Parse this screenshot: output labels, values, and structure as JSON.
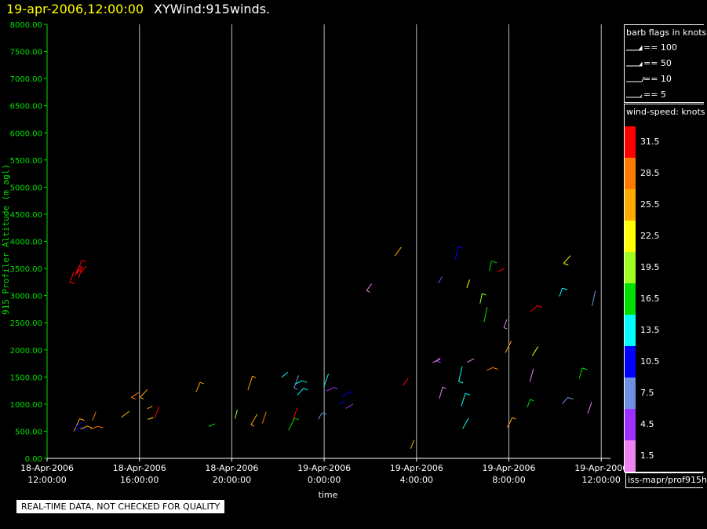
{
  "header": {
    "datetime": "19-apr-2006,12:00:00",
    "title": "XYWind:915winds."
  },
  "notice": "REAL-TIME DATA, NOT CHECKED FOR QUALITY",
  "source_label": "iss-mapr/prof915h",
  "barb_legend": {
    "title": "barb flags in knots",
    "items": [
      "== 100",
      "== 50",
      "== 10",
      "== 5"
    ]
  },
  "speed_legend": {
    "title": "wind-speed: knots",
    "levels": [
      {
        "label": "31.5",
        "color": "#ff0000"
      },
      {
        "label": "28.5",
        "color": "#ff7a00"
      },
      {
        "label": "25.5",
        "color": "#ffaa00"
      },
      {
        "label": "22.5",
        "color": "#ffff00"
      },
      {
        "label": "19.5",
        "color": "#a0ff20"
      },
      {
        "label": "16.5",
        "color": "#00e000"
      },
      {
        "label": "13.5",
        "color": "#00ffff"
      },
      {
        "label": "10.5",
        "color": "#0000ff"
      },
      {
        "label": "7.5",
        "color": "#6f8fe0"
      },
      {
        "label": "4.5",
        "color": "#9b30ff"
      },
      {
        "label": "1.5",
        "color": "#ee82ee"
      }
    ]
  },
  "chart_data": {
    "type": "scatter",
    "ylabel": "915 Profiler Altitude (m agl)",
    "xlabel": "time",
    "ylim": [
      0,
      8000
    ],
    "y_ticks": [
      "0.00",
      "500.00",
      "1000.00",
      "1500.00",
      "2000.00",
      "2500.00",
      "3000.00",
      "3500.00",
      "4000.00",
      "4500.00",
      "5000.00",
      "5500.00",
      "6000.00",
      "6500.00",
      "7000.00",
      "7500.00",
      "8000.00"
    ],
    "xlim_hours": [
      0,
      24.4
    ],
    "x_ticks": [
      {
        "hour": 0,
        "date": "18-Apr-2006",
        "time": "12:00:00"
      },
      {
        "hour": 4,
        "date": "18-Apr-2006",
        "time": "16:00:00"
      },
      {
        "hour": 8,
        "date": "18-Apr-2006",
        "time": "20:00:00"
      },
      {
        "hour": 12,
        "date": "19-Apr-2006",
        "time": "0:00:00"
      },
      {
        "hour": 16,
        "date": "19-Apr-2006",
        "time": "4:00:00"
      },
      {
        "hour": 20,
        "date": "19-Apr-2006",
        "time": "8:00:00"
      },
      {
        "hour": 24,
        "date": "19-Apr-2006",
        "time": "12:00:00"
      }
    ],
    "grid_vertical": true,
    "barb_clusters": [
      {
        "x_range": [
          0.9,
          2.4
        ],
        "y_range": [
          450,
          750
        ],
        "speeds": [
          22.5,
          25.5,
          28.5,
          10.5
        ]
      },
      {
        "x_range": [
          1.1,
          1.5
        ],
        "y_range": [
          3300,
          3500
        ],
        "speeds": [
          31.5
        ]
      },
      {
        "x_range": [
          3.2,
          4.9
        ],
        "y_range": [
          450,
          1400
        ],
        "speeds": [
          31.5,
          28.5,
          25.5,
          22.5
        ]
      },
      {
        "x_range": [
          5.5,
          10.0
        ],
        "y_range": [
          450,
          1600
        ],
        "speeds": [
          19.5,
          22.5,
          25.5,
          16.5,
          13.5,
          28.5
        ]
      },
      {
        "x_range": [
          10.0,
          11.7
        ],
        "y_range": [
          450,
          2000
        ],
        "speeds": [
          10.5,
          13.5,
          16.5,
          7.5,
          31.5
        ]
      },
      {
        "x_range": [
          11.6,
          13.3
        ],
        "y_range": [
          500,
          1400
        ],
        "speeds": [
          10.5,
          7.5,
          4.5,
          13.5
        ]
      },
      {
        "x_range": [
          14.0,
          24.4
        ],
        "y_range": [
          150,
          3800
        ],
        "speeds": [
          1.5,
          4.5,
          7.5,
          10.5,
          13.5,
          16.5,
          19.5,
          22.5,
          25.5,
          28.5,
          31.5
        ]
      }
    ]
  }
}
